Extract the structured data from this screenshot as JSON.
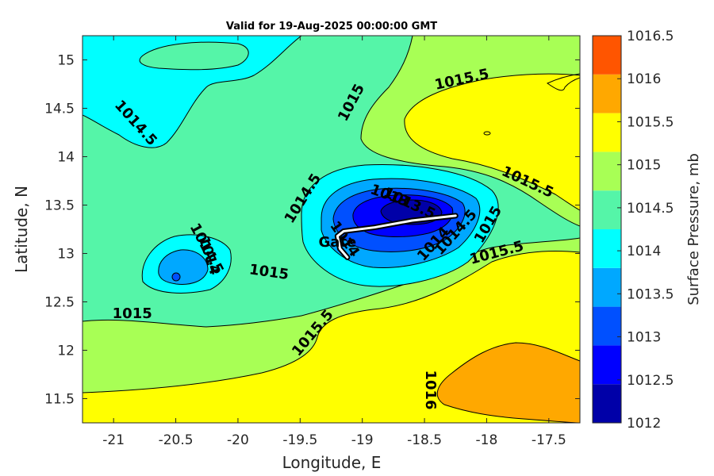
{
  "chart_data": {
    "type": "contour",
    "title": "Valid for 19-Aug-2025 00:00:00 GMT",
    "xlabel": "Longitude, E",
    "ylabel": "Latitude, N",
    "xlim": [
      -21.25,
      -17.25
    ],
    "ylim": [
      11.25,
      15.25
    ],
    "xticks": [
      -21,
      -20.5,
      -20,
      -19.5,
      -19,
      -18.5,
      -18,
      -17.5
    ],
    "yticks": [
      11.5,
      12,
      12.5,
      13,
      13.5,
      14,
      14.5,
      15
    ],
    "colorbar": {
      "label": "Surface Pressure, mb",
      "levels": [
        1012,
        1012.5,
        1013,
        1013.5,
        1014,
        1014.5,
        1015,
        1015.5,
        1016,
        1016.5
      ],
      "colors": [
        "#0000a8",
        "#0000ff",
        "#0050ff",
        "#00a8ff",
        "#00ffff",
        "#55f5a8",
        "#a8ff55",
        "#ffff00",
        "#ffa800",
        "#ff5500"
      ]
    },
    "contour_labels": [
      {
        "text": "1014.5",
        "lon": -20.82,
        "lat": 14.35,
        "angle": 48
      },
      {
        "text": "1015",
        "lon": -19.09,
        "lat": 14.56,
        "angle": -62
      },
      {
        "text": "1015.5",
        "lon": -18.2,
        "lat": 14.8,
        "angle": -12
      },
      {
        "text": "1015.5",
        "lon": -17.67,
        "lat": 13.74,
        "angle": 25
      },
      {
        "text": "1014.5",
        "lon": -19.48,
        "lat": 13.57,
        "angle": -58
      },
      {
        "text": "1013",
        "lon": -18.78,
        "lat": 13.6,
        "angle": 20
      },
      {
        "text": "1013.5",
        "lon": -18.62,
        "lat": 13.52,
        "angle": 25
      },
      {
        "text": "1014",
        "lon": -19.14,
        "lat": 13.15,
        "angle": 55
      },
      {
        "text": "1014",
        "lon": -18.43,
        "lat": 13.1,
        "angle": -48
      },
      {
        "text": "1014.5",
        "lon": -18.25,
        "lat": 13.22,
        "angle": -48
      },
      {
        "text": "1015",
        "lon": -17.99,
        "lat": 13.3,
        "angle": -60
      },
      {
        "text": "1015.5",
        "lon": -17.92,
        "lat": 13.01,
        "angle": -15
      },
      {
        "text": "1015",
        "lon": -19.75,
        "lat": 12.81,
        "angle": 8
      },
      {
        "text": "1014.5",
        "lon": -20.25,
        "lat": 13.05,
        "angle": 62
      },
      {
        "text": "1014",
        "lon": -20.23,
        "lat": 12.98,
        "angle": 72
      },
      {
        "text": "1015",
        "lon": -20.85,
        "lat": 12.38,
        "angle": 0
      },
      {
        "text": "1015.5",
        "lon": -19.4,
        "lat": 12.18,
        "angle": -50
      },
      {
        "text": "1016",
        "lon": -18.45,
        "lat": 11.59,
        "angle": 90
      }
    ],
    "track": {
      "points": [
        [
          -18.25,
          13.39
        ],
        [
          -18.6,
          13.34
        ],
        [
          -18.9,
          13.27
        ],
        [
          -19.15,
          13.23
        ],
        [
          -19.2,
          13.18
        ],
        [
          -19.18,
          13.05
        ],
        [
          -19.12,
          12.96
        ]
      ],
      "labels": [
        {
          "text": "Gate",
          "lon": -19.2,
          "lat": 13.07
        }
      ]
    }
  }
}
